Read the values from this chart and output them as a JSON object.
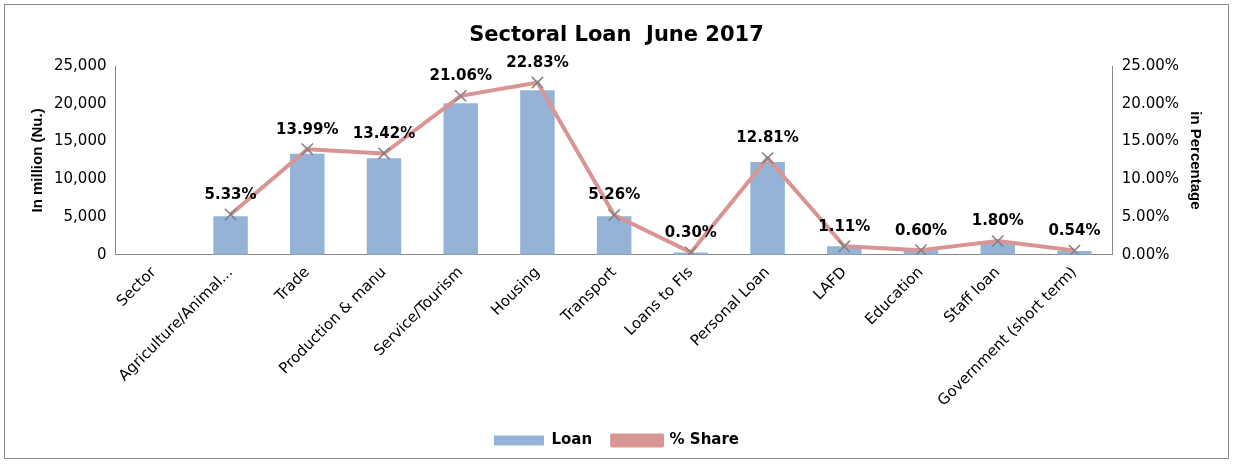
{
  "chart_data": {
    "type": "bar",
    "title": "Sectoral Loan  June 2017",
    "ylabel": "In million (Nu.)",
    "y2label": "in Percentage",
    "categories": [
      "Sector",
      "Agriculture/Animal...",
      "Trade",
      "Production & manu",
      "Service/Tourism",
      "Housing",
      "Transport",
      "Loans to FIs",
      "Personal Loan",
      "LAFD",
      "Education",
      "Staff loan",
      "Government (short term)"
    ],
    "series": [
      {
        "name": "Loan",
        "color": "#95b3d7",
        "values": [
          null,
          5100,
          13400,
          12800,
          20100,
          21800,
          5100,
          300,
          12300,
          1100,
          600,
          1700,
          500
        ]
      },
      {
        "name": "% Share",
        "type": "line",
        "axis": "y2",
        "color": "#d99594",
        "marker": "cross",
        "values": [
          null,
          5.33,
          13.99,
          13.42,
          21.06,
          22.83,
          5.26,
          0.3,
          12.81,
          1.11,
          0.6,
          1.8,
          0.54
        ],
        "value_labels": [
          null,
          "5.33%",
          "13.99%",
          "13.42%",
          "21.06%",
          "22.83%",
          "5.26%",
          "0.30%",
          "12.81%",
          "1.11%",
          "0.60%",
          "1.80%",
          "0.54%"
        ]
      }
    ],
    "ylim": [
      0,
      25000
    ],
    "yticks": [
      {
        "value": 0,
        "label": "0"
      },
      {
        "value": 5000,
        "label": "5,000"
      },
      {
        "value": 10000,
        "label": "10,000"
      },
      {
        "value": 15000,
        "label": "15,000"
      },
      {
        "value": 20000,
        "label": "20,000"
      },
      {
        "value": 25000,
        "label": "25,000"
      }
    ],
    "y2lim": [
      0,
      25
    ],
    "y2ticks": [
      {
        "value": 0,
        "label": "0.00%"
      },
      {
        "value": 5,
        "label": "5.00%"
      },
      {
        "value": 10,
        "label": "10.00%"
      },
      {
        "value": 15,
        "label": "15.00%"
      },
      {
        "value": 20,
        "label": "20.00%"
      },
      {
        "value": 25,
        "label": "25.00%"
      }
    ],
    "grid": false,
    "legend": "bottom"
  }
}
